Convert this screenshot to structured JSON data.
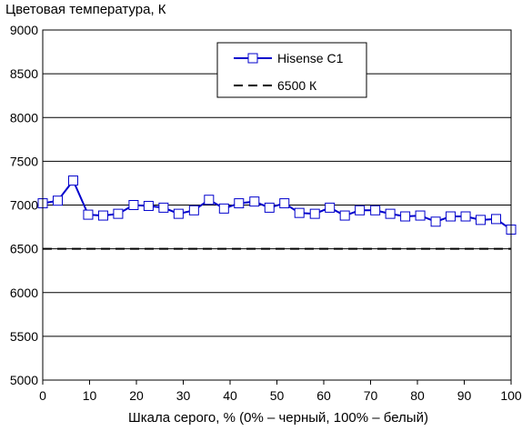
{
  "chart_data": {
    "type": "line",
    "ylabel": "Цветовая температура, К",
    "xlabel": "Шкала серого, % (0% – черный, 100% – белый)",
    "xlim": [
      0,
      100
    ],
    "ylim": [
      5000,
      9000
    ],
    "xticks": [
      0,
      10,
      20,
      30,
      40,
      50,
      60,
      70,
      80,
      90,
      100
    ],
    "yticks": [
      5000,
      5500,
      6000,
      6500,
      7000,
      7500,
      8000,
      8500,
      9000
    ],
    "grid": true,
    "legend_position": "top-right",
    "series": [
      {
        "name": "Hisense C1",
        "color": "#0000cc",
        "marker": "square",
        "x": [
          0,
          3.2,
          6.5,
          9.7,
          12.9,
          16.1,
          19.4,
          22.6,
          25.8,
          29,
          32.3,
          35.5,
          38.7,
          41.9,
          45.2,
          48.4,
          51.6,
          54.8,
          58.1,
          61.3,
          64.5,
          67.7,
          71,
          74.2,
          77.4,
          80.6,
          83.9,
          87.1,
          90.3,
          93.5,
          96.8,
          100
        ],
        "values": [
          7020,
          7050,
          7280,
          6890,
          6880,
          6900,
          7000,
          6990,
          6970,
          6900,
          6940,
          7060,
          6960,
          7020,
          7040,
          6970,
          7020,
          6910,
          6900,
          6970,
          6880,
          6940,
          6940,
          6900,
          6870,
          6880,
          6810,
          6870,
          6870,
          6830,
          6840,
          6720
        ]
      },
      {
        "name": "6500 К",
        "color": "#000000",
        "style": "dashed",
        "x": [
          0,
          100
        ],
        "values": [
          6500,
          6500
        ]
      }
    ]
  }
}
